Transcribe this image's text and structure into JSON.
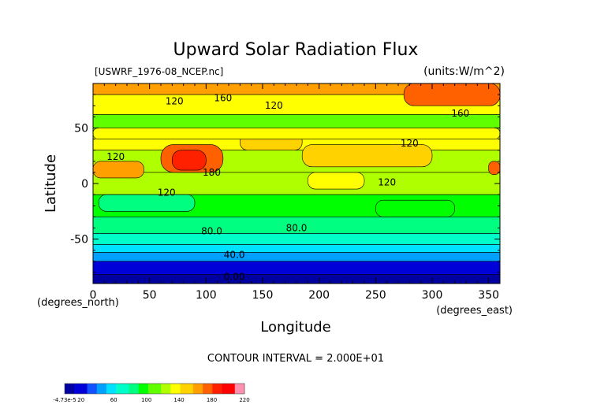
{
  "chart_data": {
    "type": "heatmap",
    "title": "Upward Solar Radiation Flux",
    "file_label": "[USWRF_1976-08_NCEP.nc]",
    "units_label": "(units:W/m^2)",
    "xlabel": "Longitude",
    "ylabel": "Latitude",
    "x_units": "(degrees_east)",
    "y_units": "(degrees_north)",
    "xlim": [
      0,
      360
    ],
    "ylim": [
      -90,
      90
    ],
    "x_ticks": [
      0,
      50,
      100,
      150,
      200,
      250,
      300,
      350
    ],
    "x_tick_labels": [
      "0",
      "50",
      "100",
      "150",
      "200",
      "250",
      "300",
      "350"
    ],
    "y_ticks": [
      -50,
      0,
      50
    ],
    "y_tick_labels": [
      "-50",
      "0",
      "50"
    ],
    "contour_interval": "CONTOUR INTERVAL = 2.000E+01",
    "contour_labels": [
      {
        "text": "120",
        "lon": 72,
        "lat": 74
      },
      {
        "text": "160",
        "lon": 115,
        "lat": 77
      },
      {
        "text": "120",
        "lon": 160,
        "lat": 70
      },
      {
        "text": "160",
        "lon": 325,
        "lat": 63
      },
      {
        "text": "120",
        "lon": 20,
        "lat": 24
      },
      {
        "text": "180",
        "lon": 105,
        "lat": 10
      },
      {
        "text": "120",
        "lon": 65,
        "lat": -8
      },
      {
        "text": "120",
        "lon": 260,
        "lat": 1
      },
      {
        "text": "120",
        "lon": 280,
        "lat": 36
      },
      {
        "text": "80.0",
        "lon": 105,
        "lat": -43
      },
      {
        "text": "80.0",
        "lon": 180,
        "lat": -40
      },
      {
        "text": "40.0",
        "lon": 125,
        "lat": -64
      },
      {
        "text": "0.00",
        "lon": 125,
        "lat": -84
      }
    ],
    "lat_bands": [
      {
        "lat_from": 90,
        "lat_to": 80,
        "value": 160
      },
      {
        "lat_from": 80,
        "lat_to": 62,
        "value": 130
      },
      {
        "lat_from": 62,
        "lat_to": 45,
        "value": 115
      },
      {
        "lat_from": 45,
        "lat_to": 30,
        "value": 130
      },
      {
        "lat_from": 30,
        "lat_to": 10,
        "value": 125
      },
      {
        "lat_from": 10,
        "lat_to": -10,
        "value": 120
      },
      {
        "lat_from": -10,
        "lat_to": -30,
        "value": 100
      },
      {
        "lat_from": -30,
        "lat_to": -45,
        "value": 85
      },
      {
        "lat_from": -45,
        "lat_to": -55,
        "value": 75
      },
      {
        "lat_from": -55,
        "lat_to": -62,
        "value": 55
      },
      {
        "lat_from": -62,
        "lat_to": -70,
        "value": 40
      },
      {
        "lat_from": -70,
        "lat_to": -82,
        "value": 15
      },
      {
        "lat_from": -82,
        "lat_to": -90,
        "value": 0
      }
    ],
    "patches": [
      {
        "lon_from": 275,
        "lon_to": 360,
        "lat_from": 90,
        "lat_to": 70,
        "value": 180
      },
      {
        "lon_from": 0,
        "lon_to": 45,
        "lat_from": 20,
        "lat_to": 5,
        "value": 160
      },
      {
        "lon_from": 60,
        "lon_to": 115,
        "lat_from": 35,
        "lat_to": 10,
        "value": 170
      },
      {
        "lon_from": 70,
        "lon_to": 100,
        "lat_from": 30,
        "lat_to": 12,
        "value": 185
      },
      {
        "lon_from": 130,
        "lon_to": 185,
        "lat_from": 45,
        "lat_to": 30,
        "value": 155
      },
      {
        "lon_from": 185,
        "lon_to": 300,
        "lat_from": 35,
        "lat_to": 15,
        "value": 145
      },
      {
        "lon_from": 350,
        "lon_to": 360,
        "lat_from": 20,
        "lat_to": 8,
        "value": 170
      },
      {
        "lon_from": 0,
        "lon_to": 360,
        "lat_from": 50,
        "lat_to": 40,
        "value": 140
      },
      {
        "lon_from": 5,
        "lon_to": 90,
        "lat_from": -10,
        "lat_to": -25,
        "value": 90
      },
      {
        "lon_from": 250,
        "lon_to": 320,
        "lat_from": -15,
        "lat_to": -30,
        "value": 95
      },
      {
        "lon_from": 190,
        "lon_to": 240,
        "lat_from": 10,
        "lat_to": -5,
        "value": 135
      }
    ],
    "colorbar": {
      "min_label": "-4.73e-5",
      "tick_labels": [
        "20",
        "60",
        "100",
        "140",
        "180",
        "220"
      ],
      "range": [
        0,
        220
      ],
      "colors": [
        "#0000a0",
        "#0000d8",
        "#1050ff",
        "#00a0ff",
        "#00e0ff",
        "#00ffc8",
        "#00ff80",
        "#00ff00",
        "#60ff00",
        "#b0ff00",
        "#ffff00",
        "#ffd200",
        "#ffa000",
        "#ff6000",
        "#ff2000",
        "#ff0000",
        "#ff90b0"
      ]
    },
    "grid": false,
    "legend": "bottom-left colorbar"
  }
}
